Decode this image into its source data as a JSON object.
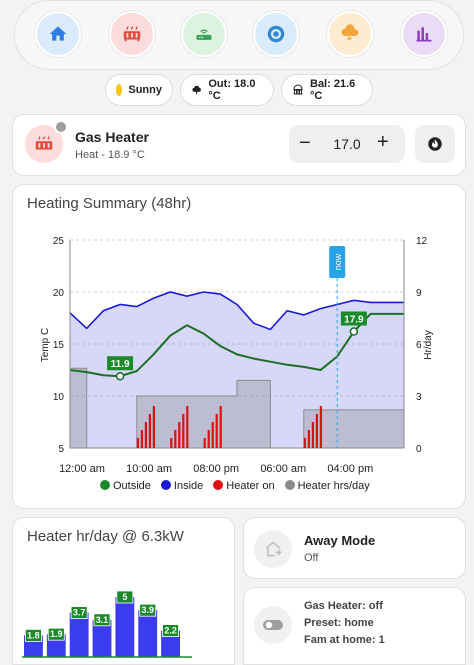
{
  "nav": {
    "items": [
      {
        "name": "home",
        "bg": "#dcebfb",
        "color": "#2f7de1"
      },
      {
        "name": "heater",
        "bg": "#fbdcdc",
        "color": "#e14b3b"
      },
      {
        "name": "router",
        "bg": "#dcf3df",
        "color": "#3aa356"
      },
      {
        "name": "thermostat",
        "bg": "#d9ecfb",
        "color": "#2f88d6"
      },
      {
        "name": "weather",
        "bg": "#fdeccf",
        "color": "#f2a33a"
      },
      {
        "name": "stats",
        "bg": "#eadcf5",
        "color": "#8e3fbf"
      }
    ]
  },
  "chips": {
    "weather": "Sunny",
    "outside": "Out: 18.0 °C",
    "balcony": "Bal: 21.6 °C"
  },
  "heater": {
    "name": "Gas Heater",
    "state": "Heat - 18.9 °C",
    "setpoint": "17.0",
    "minus": "−",
    "plus": "+"
  },
  "summary": {
    "title": "Heating Summary (48hr)",
    "ylabel_left": "Temp C",
    "ylabel_right": "Hr/day",
    "now_label": "now",
    "legend": [
      {
        "label": "Outside",
        "color": "#1b8a2a"
      },
      {
        "label": "Inside",
        "color": "#1a1ad6"
      },
      {
        "label": "Heater on",
        "color": "#e01010"
      },
      {
        "label": "Heater hrs/day",
        "color": "#8a8a8a"
      }
    ]
  },
  "chart_data": {
    "type": "line",
    "title": "Heating Summary (48hr)",
    "ylabel": "Temp C",
    "y2label": "Hr/day",
    "ylim": [
      5,
      25
    ],
    "y2lim": [
      0,
      12
    ],
    "yticks": [
      5,
      10,
      15,
      20,
      25
    ],
    "y2ticks": [
      0,
      3,
      6,
      9,
      12
    ],
    "xticks": [
      "12:00 am",
      "10:00 am",
      "08:00 pm",
      "06:00 am",
      "04:00 pm"
    ],
    "annotations": [
      {
        "text": "11.9",
        "series": "Outside"
      },
      {
        "text": "17.9",
        "series": "Outside"
      }
    ],
    "series": [
      {
        "name": "Outside",
        "color": "#1b8a2a",
        "values": [
          12.5,
          12.3,
          12.0,
          11.9,
          12.4,
          14.0,
          15.8,
          16.8,
          16.0,
          14.8,
          14.0,
          13.6,
          13.3,
          13.0,
          12.8,
          12.5,
          13.8,
          16.2,
          17.9,
          17.9,
          17.9
        ]
      },
      {
        "name": "Inside",
        "color": "#1a1ad6",
        "values": [
          18.0,
          16.5,
          18.2,
          18.8,
          18.6,
          19.4,
          20.0,
          19.6,
          20.0,
          19.8,
          18.8,
          17.0,
          16.4,
          18.2,
          17.8,
          18.4,
          18.8,
          19.2,
          19.0,
          19.0,
          19.0
        ]
      },
      {
        "name": "Heater hrs/day",
        "color": "#8a8a8a",
        "values": [
          4.6,
          0.0,
          0.0,
          0.0,
          3.0,
          3.0,
          3.0,
          3.0,
          3.0,
          3.0,
          3.9,
          3.9,
          0.0,
          0.0,
          2.2,
          2.2,
          2.2,
          2.2,
          2.2,
          2.2,
          2.2
        ]
      }
    ]
  },
  "daily": {
    "title": "Heater hr/day @ 6.3kW",
    "bars": [
      {
        "label": "1.8",
        "value": 1.8
      },
      {
        "label": "1.9",
        "value": 1.9
      },
      {
        "label": "3.7",
        "value": 3.7
      },
      {
        "label": "3.1",
        "value": 3.1
      },
      {
        "label": "5",
        "value": 5
      },
      {
        "label": "3.9",
        "value": 3.9
      },
      {
        "label": "2.2",
        "value": 2.2
      }
    ]
  },
  "away": {
    "title": "Away Mode",
    "state": "Off"
  },
  "status": {
    "line1": "Gas Heater: off",
    "line2": "Preset: home",
    "line3": "Fam at home: 1"
  }
}
